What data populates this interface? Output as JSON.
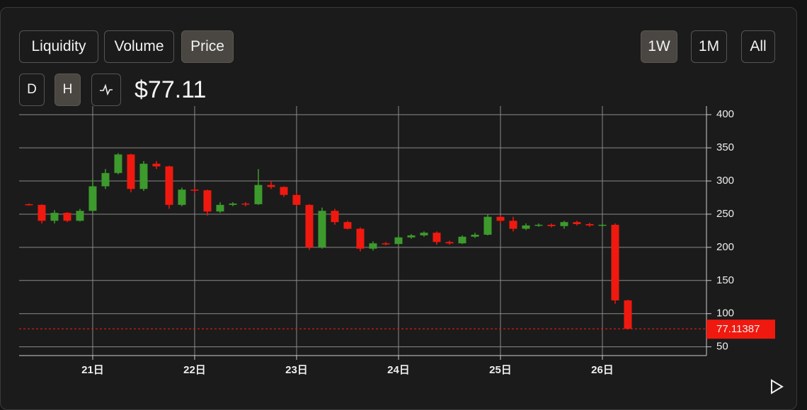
{
  "ui": {
    "tabs": [
      "Liquidity",
      "Volume",
      "Price"
    ],
    "active_tab": 2,
    "ranges": [
      "1W",
      "1M",
      "All"
    ],
    "active_range": 0,
    "intervals": [
      "D",
      "H"
    ],
    "active_interval": 1,
    "price": "$77.11"
  },
  "chart_data": {
    "type": "candlestick",
    "x": [
      20.375,
      20.5,
      20.625,
      20.75,
      20.875,
      21.0,
      21.125,
      21.25,
      21.375,
      21.5,
      21.625,
      21.75,
      21.875,
      22.0,
      22.125,
      22.25,
      22.375,
      22.5,
      22.625,
      22.75,
      22.875,
      23.0,
      23.125,
      23.25,
      23.375,
      23.5,
      23.625,
      23.75,
      23.875,
      24.0,
      24.125,
      24.25,
      24.375,
      24.5,
      24.625,
      24.75,
      24.875,
      25.0,
      25.125,
      25.25,
      25.375,
      25.5,
      25.625,
      25.75,
      25.875,
      26.0,
      26.125,
      26.25
    ],
    "open": [
      265,
      264,
      240,
      252,
      240,
      255,
      292,
      312,
      340,
      288,
      326,
      322,
      264,
      287,
      286,
      254,
      264,
      266,
      265,
      294,
      291,
      279,
      264,
      200,
      255,
      238,
      228,
      198,
      206,
      205,
      215,
      218,
      222,
      208,
      206,
      216,
      219,
      246,
      240,
      228,
      233,
      234,
      232,
      238,
      235,
      233,
      234,
      120
    ],
    "high": [
      266,
      265,
      256,
      253,
      258,
      303,
      318,
      342,
      341,
      330,
      330,
      323,
      290,
      290,
      287,
      268,
      268,
      268,
      318,
      300,
      292,
      282,
      265,
      260,
      258,
      240,
      230,
      209,
      208,
      218,
      220,
      224,
      224,
      210,
      218,
      222,
      250,
      248,
      246,
      236,
      236,
      236,
      240,
      240,
      237,
      236,
      236,
      121
    ],
    "low": [
      263,
      236,
      236,
      238,
      239,
      254,
      288,
      310,
      283,
      285,
      318,
      258,
      262,
      282,
      248,
      252,
      262,
      262,
      264,
      288,
      276,
      262,
      196,
      198,
      234,
      227,
      194,
      195,
      203,
      204,
      213,
      216,
      204,
      204,
      205,
      214,
      218,
      236,
      224,
      226,
      231,
      230,
      228,
      233,
      231,
      231,
      115,
      76
    ],
    "close": [
      264,
      240,
      252,
      240,
      255,
      292,
      312,
      340,
      288,
      326,
      322,
      264,
      287,
      286,
      254,
      264,
      266,
      265,
      294,
      291,
      279,
      264,
      200,
      255,
      238,
      228,
      198,
      206,
      205,
      215,
      218,
      222,
      208,
      206,
      216,
      219,
      246,
      240,
      228,
      233,
      234,
      232,
      238,
      235,
      233,
      234,
      120,
      77.11387
    ],
    "up_color": "#3d9a2c",
    "down_color": "#f0190f",
    "last_price": 77.11387,
    "xlim": [
      20.278,
      27.021
    ],
    "ylim": [
      40,
      413
    ],
    "xticks": [
      {
        "value": 21,
        "label": "21日"
      },
      {
        "value": 22,
        "label": "22日"
      },
      {
        "value": 23,
        "label": "23日"
      },
      {
        "value": 24,
        "label": "24日"
      },
      {
        "value": 25,
        "label": "25日"
      },
      {
        "value": 26,
        "label": "26日"
      }
    ],
    "yticks": [
      50,
      100,
      150,
      200,
      250,
      300,
      350,
      400
    ],
    "grid": true
  }
}
